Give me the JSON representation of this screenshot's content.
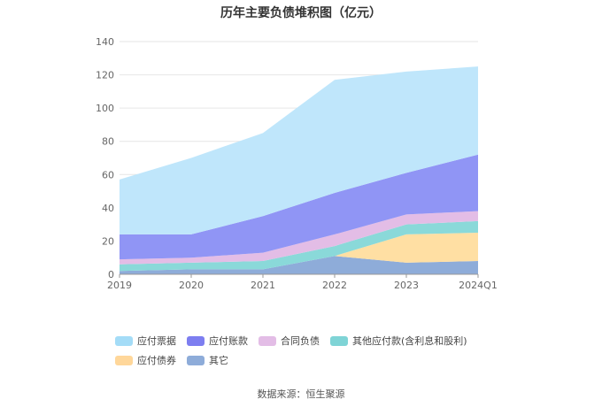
{
  "chart_data": {
    "type": "area",
    "stacked": true,
    "title": "历年主要负债堆积图（亿元）",
    "categories": [
      "2019",
      "2020",
      "2021",
      "2022",
      "2023",
      "2024Q1"
    ],
    "ylim": [
      0,
      140
    ],
    "yticks": [
      0,
      20,
      40,
      60,
      80,
      100,
      120,
      140
    ],
    "grid": true,
    "legend_position": "bottom",
    "series": [
      {
        "name": "其它",
        "color": "#8eacd9",
        "values": [
          2,
          3,
          3,
          11,
          7,
          8
        ]
      },
      {
        "name": "应付债券",
        "color": "#ffdfa3",
        "values": [
          0,
          0,
          0,
          0,
          17,
          17
        ]
      },
      {
        "name": "其他应付款(含利息和股利)",
        "color": "#8ad9d9",
        "values": [
          4,
          4,
          5,
          6,
          6,
          7
        ]
      },
      {
        "name": "合同负债",
        "color": "#e3bde6",
        "values": [
          3,
          3,
          5,
          7,
          6,
          6
        ]
      },
      {
        "name": "应付账款",
        "color": "#9095f5",
        "values": [
          15,
          14,
          22,
          25,
          25,
          34
        ]
      },
      {
        "name": "应付票据",
        "color": "#bfe6fb",
        "values": [
          33,
          46,
          50,
          68,
          61,
          53
        ]
      }
    ]
  },
  "legend_items": [
    {
      "label": "应付票据",
      "color": "#a4dcf7"
    },
    {
      "label": "应付账款",
      "color": "#7d7ef0"
    },
    {
      "label": "合同负债",
      "color": "#e3bde6"
    },
    {
      "label": "其他应付款(含利息和股利)",
      "color": "#7fd4d6"
    },
    {
      "label": "应付债券",
      "color": "#ffd79a"
    },
    {
      "label": "其它",
      "color": "#8eacd9"
    }
  ],
  "source": "数据来源：恒生聚源"
}
